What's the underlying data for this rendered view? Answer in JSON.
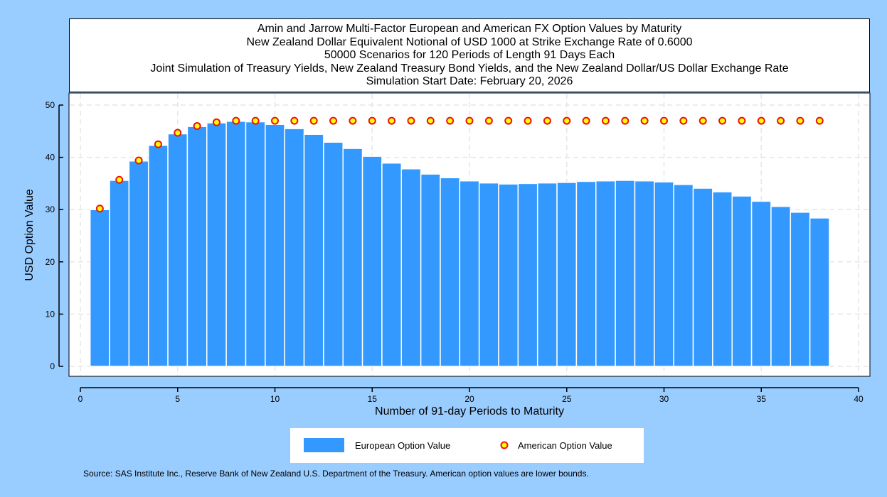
{
  "chart_data": {
    "type": "bar",
    "title": [
      "Amin and Jarrow Multi-Factor European and American FX Option Values by Maturity",
      "New Zealand Dollar Equivalent Notional of USD 1000 at Strike Exchange Rate of  0.6000",
      "50000 Scenarios for 120 Periods of Length 91 Days Each",
      "Joint Simulation of Treasury Yields, New Zealand Treasury Bond Yields, and the New Zealand Dollar/US Dollar Exchange Rate",
      "Simulation Start Date: February 20, 2026"
    ],
    "xlabel": "Number of 91-day Periods to Maturity",
    "ylabel": "USD Option Value",
    "xlim": [
      0,
      40
    ],
    "ylim": [
      0,
      50
    ],
    "xticks": [
      0,
      5,
      10,
      15,
      20,
      25,
      30,
      35,
      40
    ],
    "yticks": [
      0,
      10,
      20,
      30,
      40,
      50
    ],
    "grid": true,
    "legend_position": "bottom",
    "x": [
      1,
      2,
      3,
      4,
      5,
      6,
      7,
      8,
      9,
      10,
      11,
      12,
      13,
      14,
      15,
      16,
      17,
      18,
      19,
      20,
      21,
      22,
      23,
      24,
      25,
      26,
      27,
      28,
      29,
      30,
      31,
      32,
      33,
      34,
      35,
      36,
      37,
      38
    ],
    "series": [
      {
        "name": "European Option Value",
        "kind": "bar",
        "color": "#3399ff",
        "values": [
          30.0,
          35.6,
          39.3,
          42.3,
          44.5,
          45.9,
          46.6,
          46.9,
          46.8,
          46.3,
          45.5,
          44.4,
          42.9,
          41.7,
          40.2,
          38.9,
          37.8,
          36.8,
          36.1,
          35.5,
          35.1,
          34.9,
          35.0,
          35.1,
          35.2,
          35.4,
          35.5,
          35.6,
          35.5,
          35.3,
          34.8,
          34.1,
          33.4,
          32.6,
          31.6,
          30.6,
          29.5,
          28.4
        ]
      },
      {
        "name": "American Option Value",
        "kind": "scatter",
        "color": "#ffff00",
        "edge_color": "#ee1111",
        "values": [
          30.2,
          35.7,
          39.4,
          42.5,
          44.7,
          46.0,
          46.7,
          47.0,
          47.0,
          47.0,
          47.0,
          47.0,
          47.0,
          47.0,
          47.0,
          47.0,
          47.0,
          47.0,
          47.0,
          47.0,
          47.0,
          47.0,
          47.0,
          47.0,
          47.0,
          47.0,
          47.0,
          47.0,
          47.0,
          47.0,
          47.0,
          47.0,
          47.0,
          47.0,
          47.0,
          47.0,
          47.0,
          47.0
        ]
      }
    ]
  },
  "source_note": "Source: SAS Institute Inc., Reserve Bank of New Zealand U.S. Department of the Treasury. American option values are lower bounds.",
  "colors": {
    "background": "#99ccff",
    "plot_background": "#ffffff",
    "grid": "#e6e6e6"
  }
}
